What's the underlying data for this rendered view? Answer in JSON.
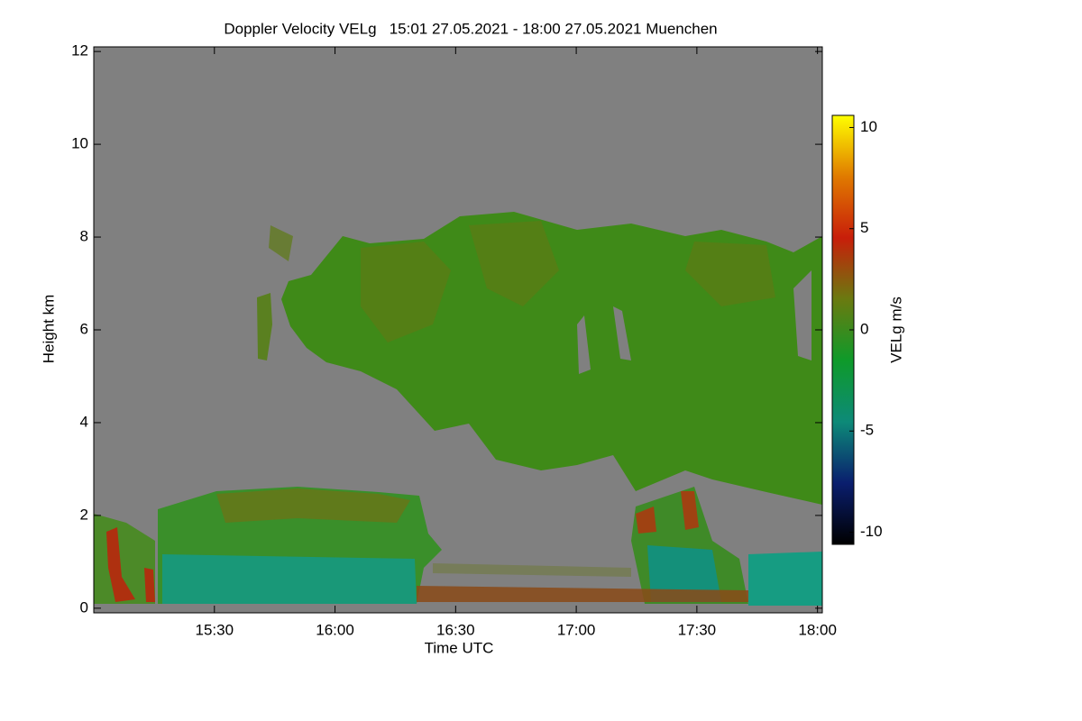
{
  "chart_data": {
    "type": "heatmap",
    "title": "Doppler Velocity VELg   15:01 27.05.2021 - 18:00 27.05.2021 Muenchen",
    "x_label": "Time UTC",
    "y_label": "Height km",
    "colorbar_label": "VELg m/s",
    "xlim": [
      15.0,
      18.02
    ],
    "xticks": [
      {
        "value": 15.5,
        "label": "15:30"
      },
      {
        "value": 16,
        "label": "16:00"
      },
      {
        "value": 16.5,
        "label": "16:30"
      },
      {
        "value": 17,
        "label": "17:00"
      },
      {
        "value": 17.5,
        "label": "17:30"
      },
      {
        "value": 18,
        "label": "18:00"
      }
    ],
    "ylim": [
      -0.1,
      12.1
    ],
    "yticks": [
      0,
      2,
      4,
      6,
      8,
      10,
      12
    ],
    "clim": [
      -10.6,
      10.6
    ],
    "cticks": [
      -10,
      -5,
      0,
      5,
      10
    ],
    "colormap": [
      "#000000",
      "#0a1e6e",
      "#0d8a78",
      "#0e9a2a",
      "#6a7a10",
      "#c81e0a",
      "#e07a00",
      "#ffff00"
    ],
    "background": "#808080"
  }
}
